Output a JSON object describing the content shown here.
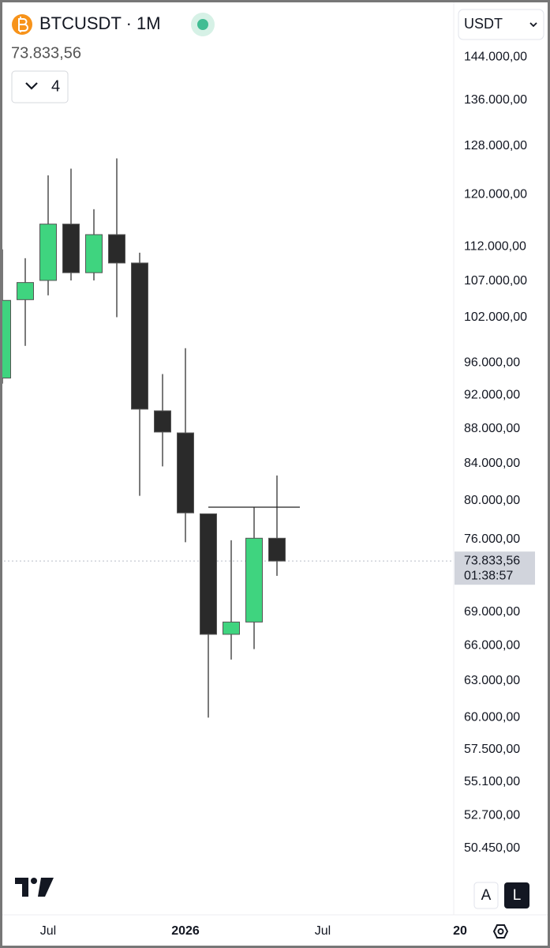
{
  "chart_data": {
    "type": "candlestick",
    "title": "BTCUSDT · 1M",
    "header_price": "73.833,56",
    "indicator_count": 4,
    "currency": "USDT",
    "last_price": {
      "value": 73833.56,
      "label": "73.833,56"
    },
    "countdown": "01:38:57",
    "price_line": 79300,
    "scale_buttons": [
      "A",
      "L"
    ],
    "log_scale": true,
    "up_color": "#3fd47f",
    "down_color": "#2a2a2a",
    "categories": [
      null,
      null,
      "Jul",
      null,
      null,
      null,
      null,
      null,
      "2026",
      null,
      null,
      null,
      null,
      null,
      "Jul",
      null,
      null,
      null,
      null,
      null,
      "20"
    ],
    "open": [
      94100,
      104400,
      107100,
      115400,
      108200,
      113800,
      109600,
      90100,
      87500,
      78600,
      67000,
      68100,
      76100,
      null,
      null,
      null,
      null,
      null,
      null,
      null,
      null
    ],
    "high": [
      111600,
      110300,
      123100,
      124200,
      117700,
      125900,
      111100,
      94600,
      97900,
      78600,
      75900,
      79300,
      82700,
      null,
      null,
      null,
      null,
      null,
      null,
      null,
      null
    ],
    "low": [
      93400,
      98200,
      105000,
      107100,
      107100,
      102000,
      80500,
      83700,
      75700,
      60000,
      64800,
      65700,
      72400,
      null,
      null,
      null,
      null,
      null,
      null,
      null,
      null
    ],
    "close": [
      104300,
      106800,
      115400,
      108200,
      113800,
      109600,
      90300,
      87600,
      78700,
      67000,
      68100,
      76100,
      73833.56,
      null,
      null,
      null,
      null,
      null,
      null,
      null,
      null
    ],
    "ylim": [
      46100,
      154500
    ],
    "yticks": [
      {
        "value": 144000,
        "label": "144.000,00"
      },
      {
        "value": 136000,
        "label": "136.000,00"
      },
      {
        "value": 128000,
        "label": "128.000,00"
      },
      {
        "value": 120000,
        "label": "120.000,00"
      },
      {
        "value": 112000,
        "label": "112.000,00"
      },
      {
        "value": 107000,
        "label": "107.000,00"
      },
      {
        "value": 102000,
        "label": "102.000,00"
      },
      {
        "value": 96000,
        "label": "96.000,00"
      },
      {
        "value": 92000,
        "label": "92.000,00"
      },
      {
        "value": 88000,
        "label": "88.000,00"
      },
      {
        "value": 84000,
        "label": "84.000,00"
      },
      {
        "value": 80000,
        "label": "80.000,00"
      },
      {
        "value": 76000,
        "label": "76.000,00"
      },
      {
        "value": 69000,
        "label": "69.000,00"
      },
      {
        "value": 66000,
        "label": "66.000,00"
      },
      {
        "value": 63000,
        "label": "63.000,00"
      },
      {
        "value": 60000,
        "label": "60.000,00"
      },
      {
        "value": 57500,
        "label": "57.500,00"
      },
      {
        "value": 55100,
        "label": "55.100,00"
      },
      {
        "value": 52700,
        "label": "52.700,00"
      },
      {
        "value": 50450,
        "label": "50.450,00"
      }
    ]
  }
}
